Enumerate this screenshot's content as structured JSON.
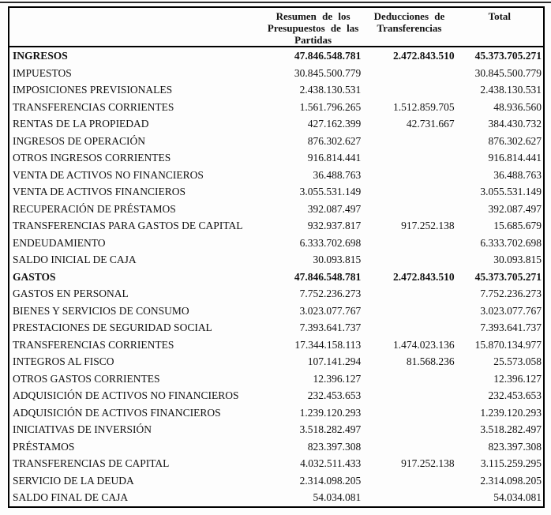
{
  "page": {
    "background": "#fdfdfd",
    "text_color": "#111111",
    "border_color": "#000000"
  },
  "table": {
    "headers": {
      "col_label": "",
      "col_resumen": "Resumen de los\nPresupuestos de las\nPartidas",
      "col_deducciones": "Deducciones de\nTransferencias",
      "col_total": "Total"
    },
    "rows": [
      {
        "label": "INGRESOS",
        "resumen": "47.846.548.781",
        "deducciones": "2.472.843.510",
        "total": "45.373.705.271",
        "bold": true
      },
      {
        "label": "IMPUESTOS",
        "resumen": "30.845.500.779",
        "deducciones": "",
        "total": "30.845.500.779",
        "bold": false
      },
      {
        "label": "IMPOSICIONES PREVISIONALES",
        "resumen": "2.438.130.531",
        "deducciones": "",
        "total": "2.438.130.531",
        "bold": false
      },
      {
        "label": "TRANSFERENCIAS CORRIENTES",
        "resumen": "1.561.796.265",
        "deducciones": "1.512.859.705",
        "total": "48.936.560",
        "bold": false
      },
      {
        "label": "RENTAS DE LA PROPIEDAD",
        "resumen": "427.162.399",
        "deducciones": "42.731.667",
        "total": "384.430.732",
        "bold": false
      },
      {
        "label": "INGRESOS DE OPERACIÓN",
        "resumen": "876.302.627",
        "deducciones": "",
        "total": "876.302.627",
        "bold": false
      },
      {
        "label": "OTROS INGRESOS CORRIENTES",
        "resumen": "916.814.441",
        "deducciones": "",
        "total": "916.814.441",
        "bold": false
      },
      {
        "label": "VENTA DE ACTIVOS NO FINANCIEROS",
        "resumen": "36.488.763",
        "deducciones": "",
        "total": "36.488.763",
        "bold": false
      },
      {
        "label": "VENTA DE ACTIVOS FINANCIEROS",
        "resumen": "3.055.531.149",
        "deducciones": "",
        "total": "3.055.531.149",
        "bold": false
      },
      {
        "label": "RECUPERACIÓN DE PRÉSTAMOS",
        "resumen": "392.087.497",
        "deducciones": "",
        "total": "392.087.497",
        "bold": false
      },
      {
        "label": "TRANSFERENCIAS PARA GASTOS DE CAPITAL",
        "resumen": "932.937.817",
        "deducciones": "917.252.138",
        "total": "15.685.679",
        "bold": false
      },
      {
        "label": "ENDEUDAMIENTO",
        "resumen": "6.333.702.698",
        "deducciones": "",
        "total": "6.333.702.698",
        "bold": false
      },
      {
        "label": "SALDO INICIAL DE CAJA",
        "resumen": "30.093.815",
        "deducciones": "",
        "total": "30.093.815",
        "bold": false
      },
      {
        "label": "GASTOS",
        "resumen": "47.846.548.781",
        "deducciones": "2.472.843.510",
        "total": "45.373.705.271",
        "bold": true
      },
      {
        "label": "GASTOS EN PERSONAL",
        "resumen": "7.752.236.273",
        "deducciones": "",
        "total": "7.752.236.273",
        "bold": false
      },
      {
        "label": "BIENES Y SERVICIOS DE CONSUMO",
        "resumen": "3.023.077.767",
        "deducciones": "",
        "total": "3.023.077.767",
        "bold": false
      },
      {
        "label": "PRESTACIONES DE SEGURIDAD SOCIAL",
        "resumen": "7.393.641.737",
        "deducciones": "",
        "total": "7.393.641.737",
        "bold": false
      },
      {
        "label": "TRANSFERENCIAS CORRIENTES",
        "resumen": "17.344.158.113",
        "deducciones": "1.474.023.136",
        "total": "15.870.134.977",
        "bold": false
      },
      {
        "label": "INTEGROS AL FISCO",
        "resumen": "107.141.294",
        "deducciones": "81.568.236",
        "total": "25.573.058",
        "bold": false
      },
      {
        "label": "OTROS GASTOS CORRIENTES",
        "resumen": "12.396.127",
        "deducciones": "",
        "total": "12.396.127",
        "bold": false
      },
      {
        "label": "ADQUISICIÓN DE ACTIVOS NO FINANCIEROS",
        "resumen": "232.453.653",
        "deducciones": "",
        "total": "232.453.653",
        "bold": false
      },
      {
        "label": "ADQUISICIÓN DE ACTIVOS FINANCIEROS",
        "resumen": "1.239.120.293",
        "deducciones": "",
        "total": "1.239.120.293",
        "bold": false
      },
      {
        "label": "INICIATIVAS DE INVERSIÓN",
        "resumen": "3.518.282.497",
        "deducciones": "",
        "total": "3.518.282.497",
        "bold": false
      },
      {
        "label": "PRÉSTAMOS",
        "resumen": "823.397.308",
        "deducciones": "",
        "total": "823.397.308",
        "bold": false
      },
      {
        "label": "TRANSFERENCIAS DE CAPITAL",
        "resumen": "4.032.511.433",
        "deducciones": "917.252.138",
        "total": "3.115.259.295",
        "bold": false
      },
      {
        "label": "SERVICIO DE LA DEUDA",
        "resumen": "2.314.098.205",
        "deducciones": "",
        "total": "2.314.098.205",
        "bold": false
      },
      {
        "label": "SALDO FINAL DE CAJA",
        "resumen": "54.034.081",
        "deducciones": "",
        "total": "54.034.081",
        "bold": false
      }
    ]
  }
}
